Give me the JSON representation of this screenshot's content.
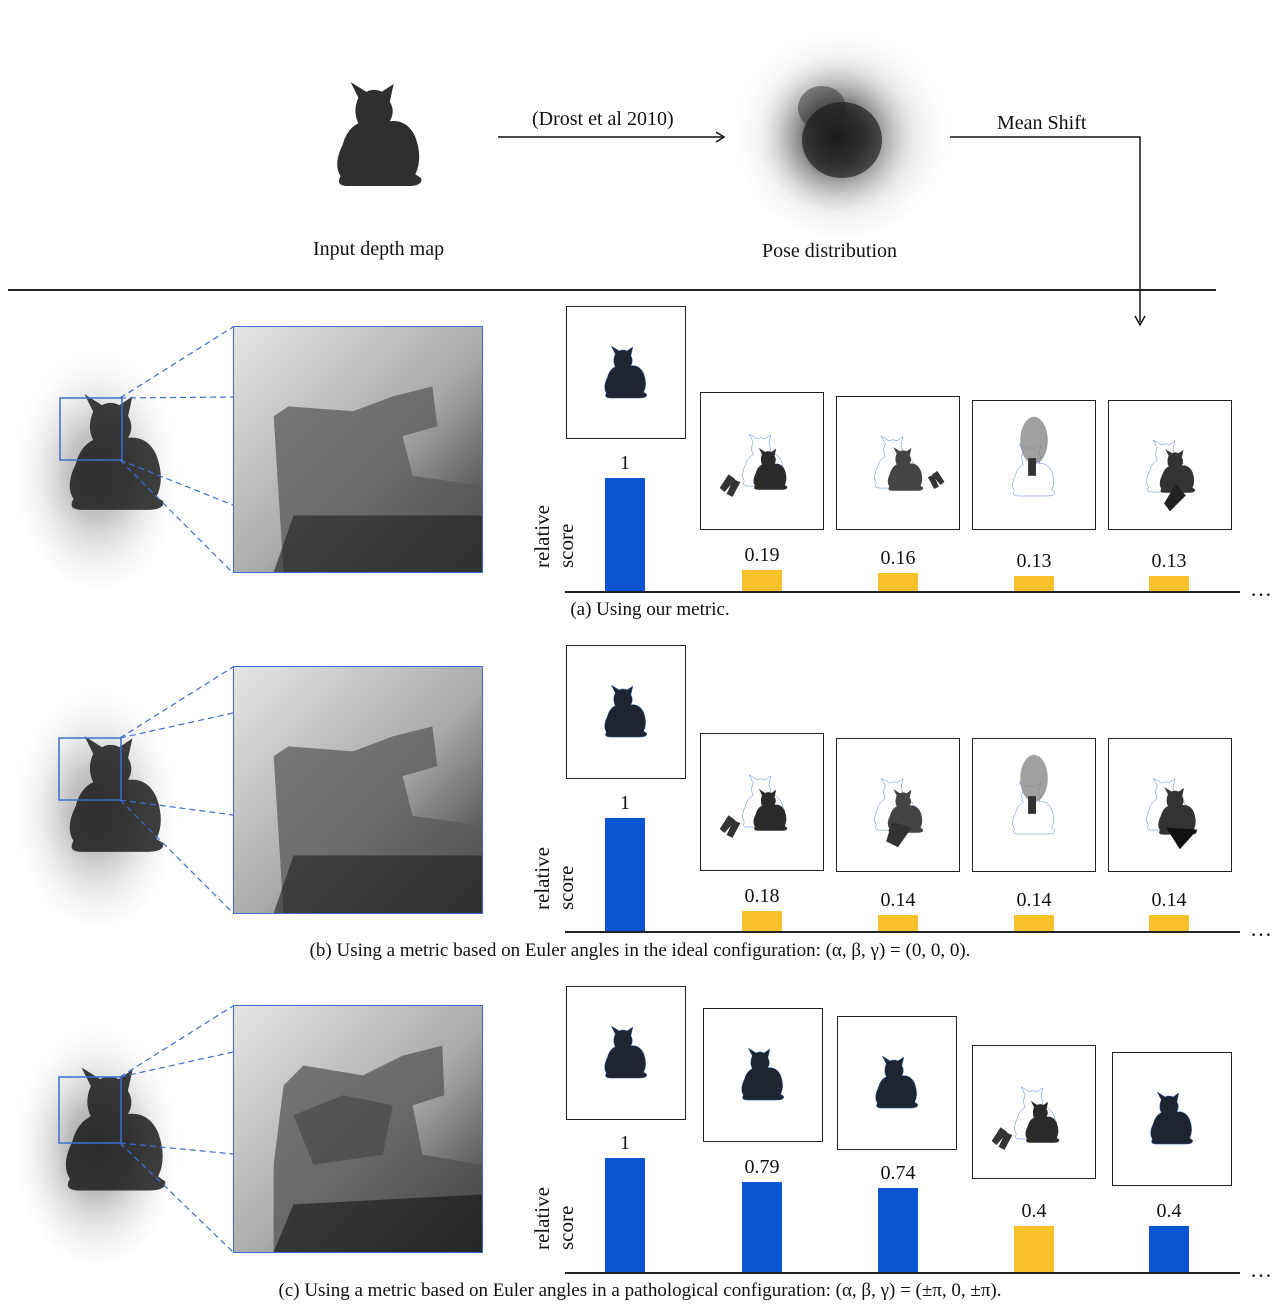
{
  "pipeline": {
    "input_label": "Input depth map",
    "arrow1_label": "(Drost et al 2010)",
    "dist_label": "Pose distribution",
    "arrow2_label": "Mean Shift"
  },
  "axis": {
    "y_label_line1": "relative",
    "y_label_line2": "score",
    "ellipsis": "…"
  },
  "colors": {
    "top": "#0b55d3",
    "other": "#f8c12a",
    "zoom_frame": "#3a6fd0"
  },
  "chart_data": [
    {
      "type": "bar",
      "caption": "(a) Using our metric.",
      "series": [
        {
          "values": [
            1,
            0.19,
            0.16,
            0.13,
            0.13
          ]
        }
      ],
      "value_labels": [
        "1",
        "0.19",
        "0.16",
        "0.13",
        "0.13"
      ],
      "bar_colors": [
        "top",
        "other",
        "other",
        "other",
        "other"
      ]
    },
    {
      "type": "bar",
      "caption": "(b) Using a metric based on Euler angles in the ideal configuration: (α, β, γ) = (0, 0, 0).",
      "series": [
        {
          "values": [
            1,
            0.18,
            0.14,
            0.14,
            0.14
          ]
        }
      ],
      "value_labels": [
        "1",
        "0.18",
        "0.14",
        "0.14",
        "0.14"
      ],
      "bar_colors": [
        "top",
        "other",
        "other",
        "other",
        "other"
      ]
    },
    {
      "type": "bar",
      "caption": "(c) Using a metric based on Euler angles in a pathological configuration: (α, β, γ) = (±π, 0, ±π).",
      "series": [
        {
          "values": [
            1,
            0.79,
            0.74,
            0.4,
            0.4
          ]
        }
      ],
      "value_labels": [
        "1",
        "0.79",
        "0.74",
        "0.4",
        "0.4"
      ],
      "bar_colors": [
        "top",
        "top",
        "top",
        "other",
        "top"
      ]
    }
  ]
}
